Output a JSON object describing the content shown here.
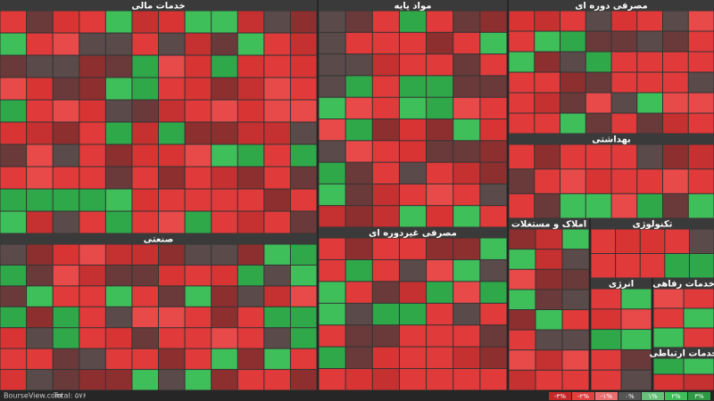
{
  "sectors": [
    {
      "title": "خدمات مالی"
    },
    {
      "title": "مواد پایه"
    },
    {
      "title": "مصرفی دوره ای"
    },
    {
      "title": "بهداشتی"
    },
    {
      "title": "صنعتی"
    },
    {
      "title": "مصرفی غیردوره ای"
    },
    {
      "title": "املاک و مستغلات"
    },
    {
      "title": "تکنولوژی"
    },
    {
      "title": "انرژی"
    },
    {
      "title": "خدمات رفاهی"
    },
    {
      "title": "خدمات ارتباطی"
    }
  ],
  "footer": {
    "site": "BourseView.com",
    "total": "Total: ۵۷۶"
  },
  "legend": [
    "-۳%",
    "-۲%",
    "-۱%",
    "۰%",
    "۱%",
    "۲%",
    "۳%"
  ]
}
